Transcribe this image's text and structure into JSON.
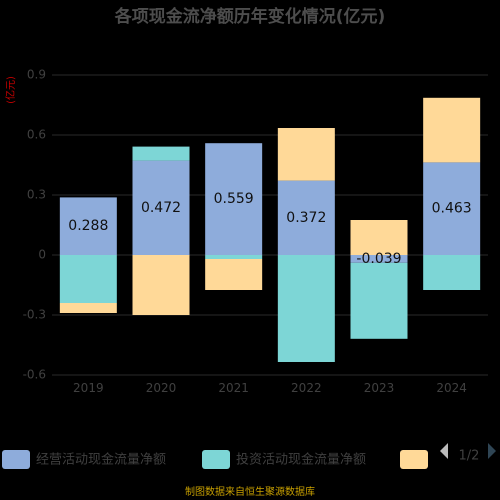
{
  "chart_data": {
    "type": "bar",
    "stacked": true,
    "title": "各项现金流净额历年变化情况(亿元)",
    "unit_label": "(亿元)",
    "categories": [
      "2019",
      "2020",
      "2021",
      "2022",
      "2023",
      "2024"
    ],
    "ylim": [
      -0.6,
      0.9
    ],
    "yticks": [
      "0.9",
      "0.6",
      "0.3",
      "0",
      "-0.3",
      "-0.6"
    ],
    "grid": true,
    "series": [
      {
        "name": "经营活动现金流量净额",
        "color": "#8eacdb",
        "values": [
          0.288,
          0.472,
          0.559,
          0.372,
          -0.039,
          0.463
        ]
      },
      {
        "name": "投资活动现金流量净额",
        "color": "#7dd6d6",
        "values": [
          -0.24,
          0.07,
          -0.02,
          -0.535,
          -0.38,
          -0.175
        ]
      },
      {
        "name": "",
        "color": "#ffd998",
        "values": [
          -0.05,
          -0.3,
          -0.155,
          0.263,
          0.175,
          0.323
        ]
      }
    ],
    "data_labels": [
      "0.288",
      "0.472",
      "0.559",
      "0.372",
      "-0.039",
      "0.463"
    ],
    "legend": {
      "position": "bottom",
      "page": "1/2"
    }
  },
  "source": "制图数据来自恒生聚源数据库"
}
